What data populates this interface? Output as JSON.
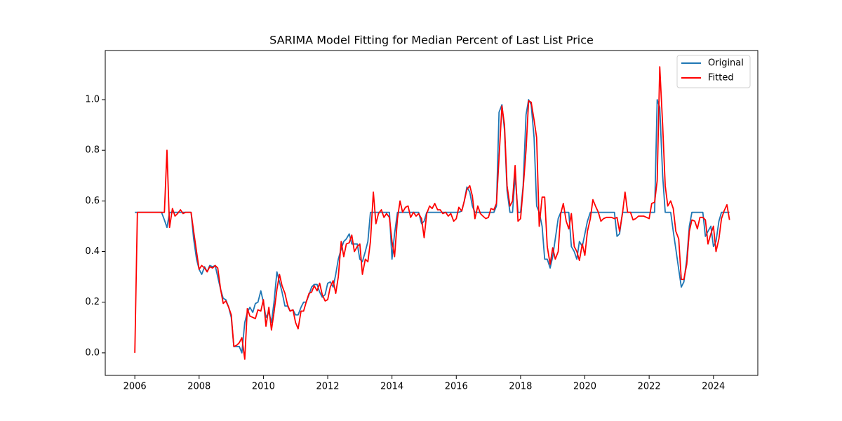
{
  "chart_data": {
    "type": "line",
    "title": "SARIMA Model Fitting for Median Percent of Last List Price",
    "x": [
      2006,
      2006.08,
      2006.83,
      2006.92,
      2007,
      2007.08,
      2007.17,
      2007.25,
      2007.33,
      2007.42,
      2007.5,
      2007.58,
      2007.75,
      2007.83,
      2007.92,
      2008,
      2008.08,
      2008.17,
      2008.25,
      2008.33,
      2008.42,
      2008.5,
      2008.58,
      2008.67,
      2008.75,
      2008.83,
      2008.92,
      2009,
      2009.08,
      2009.17,
      2009.25,
      2009.33,
      2009.42,
      2009.5,
      2009.58,
      2009.67,
      2009.75,
      2009.83,
      2009.92,
      2010,
      2010.08,
      2010.17,
      2010.25,
      2010.33,
      2010.42,
      2010.5,
      2010.58,
      2010.67,
      2010.75,
      2010.83,
      2010.92,
      2011,
      2011.08,
      2011.17,
      2011.25,
      2011.33,
      2011.42,
      2011.5,
      2011.58,
      2011.67,
      2011.75,
      2011.83,
      2011.92,
      2012,
      2012.08,
      2012.17,
      2012.25,
      2012.33,
      2012.42,
      2012.5,
      2012.58,
      2012.67,
      2012.75,
      2012.83,
      2012.92,
      2013,
      2013.08,
      2013.17,
      2013.25,
      2013.33,
      2013.42,
      2013.5,
      2013.58,
      2013.67,
      2013.75,
      2013.83,
      2013.92,
      2014,
      2014.08,
      2014.17,
      2014.25,
      2014.33,
      2014.42,
      2014.5,
      2014.58,
      2014.67,
      2014.75,
      2014.83,
      2014.92,
      2015,
      2015.08,
      2015.17,
      2015.25,
      2015.33,
      2015.42,
      2015.5,
      2015.58,
      2015.67,
      2015.75,
      2015.83,
      2015.92,
      2016,
      2016.08,
      2016.17,
      2016.25,
      2016.33,
      2016.42,
      2016.5,
      2016.58,
      2016.67,
      2016.75,
      2016.83,
      2016.92,
      2017,
      2017.08,
      2017.17,
      2017.25,
      2017.33,
      2017.42,
      2017.5,
      2017.58,
      2017.67,
      2017.75,
      2017.83,
      2017.92,
      2018,
      2018.08,
      2018.17,
      2018.25,
      2018.33,
      2018.42,
      2018.5,
      2018.58,
      2018.67,
      2018.75,
      2018.83,
      2018.92,
      2019,
      2019.08,
      2019.17,
      2019.25,
      2019.33,
      2019.42,
      2019.5,
      2019.58,
      2019.67,
      2019.75,
      2019.83,
      2019.92,
      2020,
      2020.08,
      2020.17,
      2020.25,
      2020.33,
      2020.42,
      2020.5,
      2020.58,
      2020.67,
      2020.75,
      2020.83,
      2020.92,
      2021,
      2021.08,
      2021.17,
      2021.25,
      2021.33,
      2021.42,
      2021.5,
      2021.58,
      2021.67,
      2021.75,
      2021.83,
      2021.92,
      2022,
      2022.08,
      2022.17,
      2022.25,
      2022.33,
      2022.42,
      2022.5,
      2022.58,
      2022.67,
      2022.75,
      2022.83,
      2022.92,
      2023,
      2023.08,
      2023.17,
      2023.25,
      2023.33,
      2023.42,
      2023.5,
      2023.58,
      2023.67,
      2023.75,
      2023.83,
      2023.92,
      2024,
      2024.08,
      2024.17,
      2024.25,
      2024.33,
      2024.42,
      2024.5
    ],
    "series": [
      {
        "name": "Original",
        "color": "#1f77b4",
        "values": [
          0.555,
          0.555,
          0.555,
          0.525,
          0.495,
          0.555,
          0.555,
          0.555,
          0.555,
          0.555,
          0.555,
          0.555,
          0.555,
          0.45,
          0.37,
          0.33,
          0.31,
          0.34,
          0.32,
          0.345,
          0.34,
          0.345,
          0.3,
          0.25,
          0.215,
          0.21,
          0.18,
          0.14,
          0.025,
          0.025,
          0.025,
          0.0,
          0.12,
          0.16,
          0.18,
          0.16,
          0.195,
          0.2,
          0.245,
          0.2,
          0.14,
          0.16,
          0.12,
          0.2,
          0.32,
          0.28,
          0.24,
          0.185,
          0.185,
          0.165,
          0.17,
          0.15,
          0.15,
          0.18,
          0.2,
          0.2,
          0.23,
          0.26,
          0.27,
          0.27,
          0.24,
          0.22,
          0.23,
          0.275,
          0.28,
          0.26,
          0.31,
          0.37,
          0.41,
          0.44,
          0.45,
          0.47,
          0.43,
          0.43,
          0.43,
          0.37,
          0.36,
          0.4,
          0.44,
          0.555,
          0.555,
          0.555,
          0.555,
          0.555,
          0.555,
          0.555,
          0.555,
          0.37,
          0.47,
          0.555,
          0.555,
          0.555,
          0.555,
          0.555,
          0.555,
          0.555,
          0.555,
          0.555,
          0.51,
          0.52,
          0.555,
          0.555,
          0.555,
          0.555,
          0.555,
          0.555,
          0.555,
          0.555,
          0.555,
          0.555,
          0.555,
          0.555,
          0.555,
          0.56,
          0.6,
          0.655,
          0.635,
          0.58,
          0.555,
          0.555,
          0.555,
          0.555,
          0.555,
          0.555,
          0.555,
          0.555,
          0.58,
          0.95,
          0.98,
          0.88,
          0.64,
          0.555,
          0.555,
          0.7,
          0.555,
          0.555,
          0.66,
          0.94,
          1.0,
          0.98,
          0.85,
          0.58,
          0.555,
          0.5,
          0.37,
          0.37,
          0.335,
          0.38,
          0.45,
          0.53,
          0.555,
          0.555,
          0.555,
          0.555,
          0.42,
          0.4,
          0.37,
          0.44,
          0.42,
          0.47,
          0.52,
          0.555,
          0.555,
          0.555,
          0.555,
          0.555,
          0.555,
          0.555,
          0.555,
          0.555,
          0.555,
          0.46,
          0.47,
          0.555,
          0.555,
          0.555,
          0.555,
          0.555,
          0.555,
          0.555,
          0.555,
          0.555,
          0.555,
          0.555,
          0.555,
          0.555,
          1.0,
          0.97,
          0.7,
          0.555,
          0.555,
          0.555,
          0.48,
          0.41,
          0.33,
          0.26,
          0.28,
          0.37,
          0.5,
          0.555,
          0.555,
          0.555,
          0.555,
          0.555,
          0.46,
          0.48,
          0.5,
          0.42,
          0.44,
          0.52,
          0.555,
          0.555,
          0.555,
          0.555
        ]
      },
      {
        "name": "Fitted",
        "color": "#ff0000",
        "values": [
          0.0,
          0.555,
          0.555,
          0.555,
          0.8,
          0.495,
          0.57,
          0.54,
          0.55,
          0.565,
          0.55,
          0.555,
          0.555,
          0.48,
          0.4,
          0.33,
          0.345,
          0.335,
          0.32,
          0.34,
          0.335,
          0.345,
          0.335,
          0.25,
          0.195,
          0.205,
          0.18,
          0.15,
          0.025,
          0.03,
          0.04,
          0.06,
          -0.025,
          0.175,
          0.145,
          0.14,
          0.135,
          0.17,
          0.165,
          0.21,
          0.105,
          0.18,
          0.09,
          0.16,
          0.25,
          0.31,
          0.265,
          0.235,
          0.19,
          0.165,
          0.17,
          0.12,
          0.095,
          0.165,
          0.165,
          0.2,
          0.235,
          0.24,
          0.265,
          0.245,
          0.275,
          0.23,
          0.205,
          0.21,
          0.26,
          0.285,
          0.235,
          0.3,
          0.44,
          0.38,
          0.43,
          0.435,
          0.465,
          0.4,
          0.42,
          0.43,
          0.31,
          0.37,
          0.36,
          0.44,
          0.635,
          0.51,
          0.55,
          0.565,
          0.535,
          0.55,
          0.535,
          0.44,
          0.38,
          0.53,
          0.6,
          0.555,
          0.575,
          0.58,
          0.535,
          0.555,
          0.54,
          0.55,
          0.53,
          0.455,
          0.55,
          0.58,
          0.57,
          0.59,
          0.565,
          0.565,
          0.55,
          0.555,
          0.54,
          0.55,
          0.52,
          0.53,
          0.575,
          0.56,
          0.6,
          0.645,
          0.66,
          0.62,
          0.53,
          0.58,
          0.55,
          0.54,
          0.53,
          0.535,
          0.57,
          0.565,
          0.59,
          0.77,
          0.975,
          0.9,
          0.66,
          0.58,
          0.6,
          0.74,
          0.52,
          0.53,
          0.65,
          0.8,
          0.995,
          0.99,
          0.92,
          0.85,
          0.5,
          0.615,
          0.615,
          0.42,
          0.35,
          0.415,
          0.37,
          0.4,
          0.55,
          0.59,
          0.52,
          0.49,
          0.55,
          0.42,
          0.4,
          0.365,
          0.43,
          0.385,
          0.48,
          0.53,
          0.605,
          0.58,
          0.555,
          0.52,
          0.53,
          0.535,
          0.535,
          0.535,
          0.53,
          0.535,
          0.48,
          0.55,
          0.635,
          0.555,
          0.555,
          0.525,
          0.53,
          0.54,
          0.54,
          0.54,
          0.535,
          0.53,
          0.59,
          0.595,
          0.68,
          1.13,
          0.9,
          0.66,
          0.58,
          0.6,
          0.57,
          0.48,
          0.45,
          0.29,
          0.29,
          0.35,
          0.48,
          0.525,
          0.52,
          0.49,
          0.535,
          0.535,
          0.525,
          0.43,
          0.47,
          0.5,
          0.4,
          0.45,
          0.53,
          0.56,
          0.585,
          0.525
        ]
      }
    ],
    "xlim": [
      2005.08,
      2025.38
    ],
    "xticks": [
      2006,
      2008,
      2010,
      2012,
      2014,
      2016,
      2018,
      2020,
      2022,
      2024
    ],
    "ylim": [
      -0.089,
      1.194
    ],
    "yticks": [
      {
        "value": 0,
        "label": "0.0"
      },
      0.2,
      0.4,
      0.6,
      0.8,
      {
        "value": 1,
        "label": "1.0"
      }
    ],
    "grid": false,
    "legend": "upper right"
  }
}
